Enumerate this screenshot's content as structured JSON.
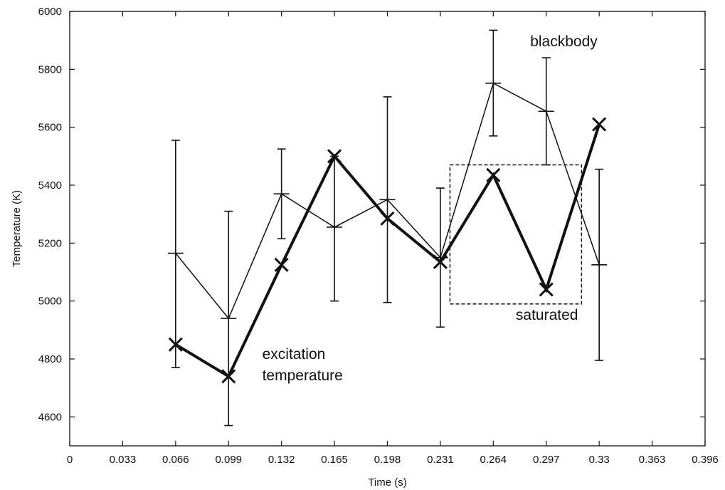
{
  "chart_data": {
    "type": "line",
    "title": "",
    "xlabel": "Time (s)",
    "ylabel": "Temperature (K)",
    "xlim": [
      0,
      0.396
    ],
    "ylim": [
      4500,
      6000
    ],
    "xticks": [
      "0",
      "0.033",
      "0.066",
      "0.099",
      "0.132",
      "0.165",
      "0.198",
      "0.231",
      "0.264",
      "0.297",
      "0.33",
      "0.363",
      "0.396"
    ],
    "yticks": [
      "4600",
      "4800",
      "5000",
      "5200",
      "5400",
      "5600",
      "5800",
      "6000"
    ],
    "grid": false,
    "series": [
      {
        "key": "blackbody",
        "marker": "plus",
        "line": "thin",
        "x": [
          0.066,
          0.099,
          0.132,
          0.165,
          0.198,
          0.231,
          0.264,
          0.297,
          0.33
        ],
        "y": [
          5165,
          4940,
          5370,
          5255,
          5350,
          5150,
          5752,
          5655,
          5125
        ],
        "err_low": [
          4770,
          4570,
          5215,
          5000,
          4995,
          4910,
          5570,
          5470,
          4795
        ],
        "err_high": [
          5555,
          5310,
          5525,
          5500,
          5705,
          5390,
          5935,
          5840,
          5455
        ]
      },
      {
        "key": "excitation",
        "marker": "x",
        "line": "thick",
        "x": [
          0.066,
          0.099,
          0.132,
          0.165,
          0.198,
          0.231,
          0.264,
          0.297,
          0.33
        ],
        "y": [
          4850,
          4740,
          5125,
          5500,
          5285,
          5135,
          5435,
          5040,
          5610
        ]
      }
    ],
    "annotations": [
      {
        "key": "blackbody",
        "lines": [
          "blackbody"
        ],
        "x": 0.287,
        "y": 5880
      },
      {
        "key": "excitation",
        "lines": [
          "excitation",
          "temperature"
        ],
        "x": 0.12,
        "y": 4800
      },
      {
        "key": "saturated",
        "lines": [
          "saturated"
        ],
        "x": 0.278,
        "y": 4935
      }
    ],
    "saturated_region": {
      "x_from": 0.237,
      "x_to": 0.319,
      "y_from": 4990,
      "y_to": 5470
    }
  }
}
